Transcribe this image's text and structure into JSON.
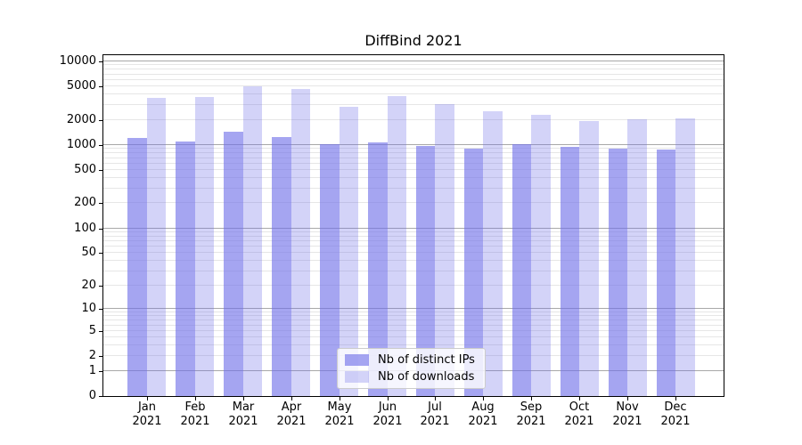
{
  "title": "DiffBind 2021",
  "chart_data": {
    "type": "bar",
    "title": "DiffBind 2021",
    "categories": [
      "Jan",
      "Feb",
      "Mar",
      "Apr",
      "May",
      "Jun",
      "Jul",
      "Aug",
      "Sep",
      "Oct",
      "Nov",
      "Dec"
    ],
    "category_year": "2021",
    "x_tick_labels": [
      "Jan 2021",
      "Feb 2021",
      "Mar 2021",
      "Apr 2021",
      "May 2021",
      "Jun 2021",
      "Jul 2021",
      "Aug 2021",
      "Sep 2021",
      "Oct 2021",
      "Nov 2021",
      "Dec 2021"
    ],
    "series": [
      {
        "name": "Nb of distinct IPs",
        "fill": "rgba(110,110,232,0.62)",
        "hex_over_white": "#a5a5f0",
        "values": [
          1217,
          1104,
          1432,
          1247,
          1033,
          1069,
          969,
          900,
          1030,
          953,
          915,
          878
        ]
      },
      {
        "name": "Nb of downloads",
        "fill": "rgba(110,110,232,0.30)",
        "hex_over_white": "#d3d3f8",
        "values": [
          3664,
          3784,
          5050,
          4677,
          2845,
          3872,
          3063,
          2537,
          2310,
          1951,
          2030,
          2065
        ]
      }
    ],
    "y_scale": "log10(1+x)",
    "ylabel": "",
    "xlabel": "",
    "ylim": [
      0,
      12250
    ],
    "y_tick_values": [
      10000,
      5000,
      2000,
      1000,
      500,
      200,
      100,
      50,
      20,
      10,
      5,
      2,
      1,
      0
    ],
    "y_tick_labels": [
      "10000",
      "5000",
      "2000",
      "1000",
      "500",
      "200",
      "100",
      "50",
      "20",
      "10",
      "5",
      "2",
      "1",
      "0"
    ],
    "grid": {
      "orientation": "horizontal",
      "major_values": [
        1,
        10,
        100,
        1000,
        10000
      ],
      "minor_rule": "multiples 2-9 of each decade from 1 to 10000",
      "major_color": "#a8a8a8",
      "minor_color": "#e6e6e6"
    },
    "legend": {
      "position": "lower center inside plot",
      "items": [
        "Nb of distinct IPs",
        "Nb of downloads"
      ]
    }
  },
  "axes": {
    "spine_color": "#000000",
    "tick_color": "#000000",
    "background": "#ffffff"
  }
}
